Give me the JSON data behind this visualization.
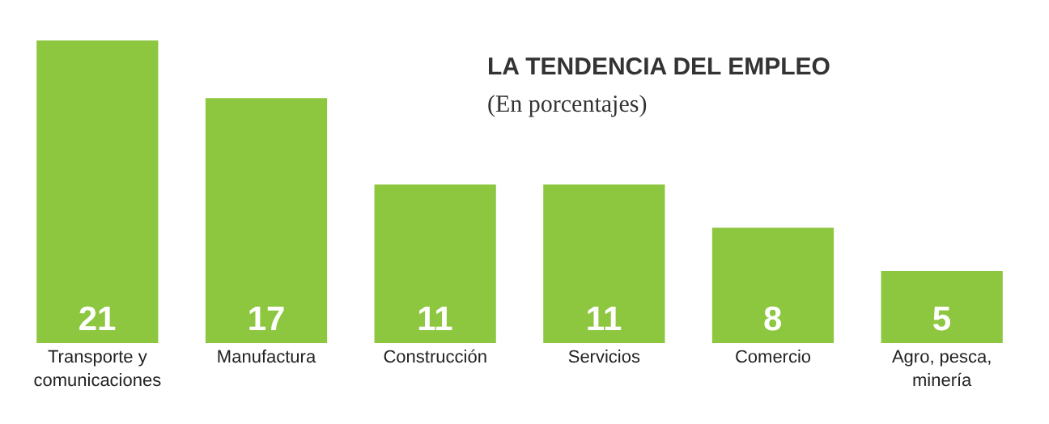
{
  "chart_data": {
    "type": "bar",
    "title": "LA TENDENCIA DEL EMPLEO",
    "subtitle": "(En porcentajes)",
    "categories": [
      "Transporte y comunicaciones",
      "Manufactura",
      "Construcción",
      "Servicios",
      "Comercio",
      "Agro, pesca, minería"
    ],
    "values": [
      21,
      17,
      11,
      11,
      8,
      5
    ],
    "color": "#8dc63f",
    "data_labels": true
  }
}
